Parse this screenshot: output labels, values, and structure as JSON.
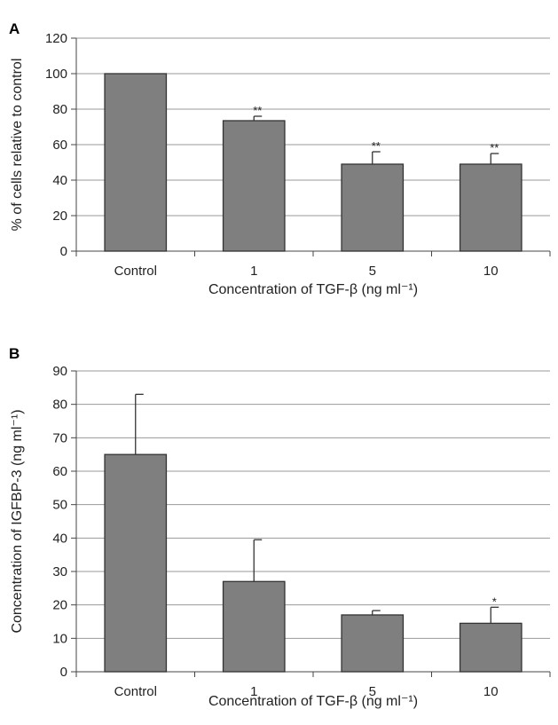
{
  "chart_data": [
    {
      "type": "bar",
      "panel_label": "A",
      "categories": [
        "Control",
        "1",
        "5",
        "10"
      ],
      "values": [
        100,
        73.5,
        49,
        49
      ],
      "errors": [
        0,
        2.5,
        7,
        6
      ],
      "significance": [
        "",
        "**",
        "**",
        "**"
      ],
      "xlabel": "Concentration of TGF-β (ng ml⁻¹)",
      "ylabel": "% of cells relative to control",
      "ylim": [
        0,
        120
      ],
      "yticks": [
        0,
        20,
        40,
        60,
        80,
        100,
        120
      ],
      "grid": true,
      "bar_color": "#7f7f7f"
    },
    {
      "type": "bar",
      "panel_label": "B",
      "categories": [
        "Control",
        "1",
        "5",
        "10"
      ],
      "values": [
        65,
        27,
        17,
        14.5
      ],
      "errors": [
        18,
        12.5,
        1.3,
        4.8
      ],
      "significance": [
        "",
        "",
        "",
        "*"
      ],
      "xlabel": "Concentration of TGF-β (ng ml⁻¹)",
      "ylabel": "Concentration of IGFBP-3 (ng ml⁻¹)",
      "ylim": [
        0,
        90
      ],
      "yticks": [
        0,
        10,
        20,
        30,
        40,
        50,
        60,
        70,
        80,
        90
      ],
      "grid": true,
      "bar_color": "#7f7f7f"
    }
  ]
}
